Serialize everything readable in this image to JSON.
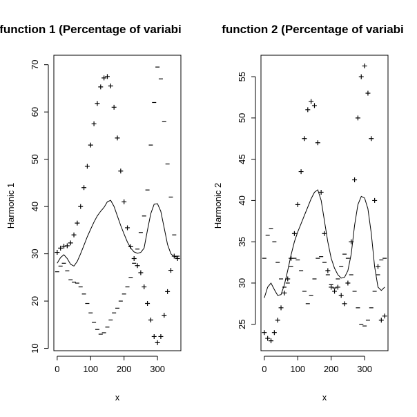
{
  "chart_data": [
    {
      "type": "line",
      "title": "function 1 (Percentage of variabi",
      "xlabel": "x",
      "ylabel": "Harmonic 1",
      "xlim": [
        -10,
        370
      ],
      "ylim": [
        9.5,
        72
      ],
      "xticks": [
        0,
        100,
        200,
        300
      ],
      "yticks": [
        10,
        20,
        30,
        40,
        50,
        60,
        70
      ],
      "grid": false,
      "mean_curve": {
        "x": [
          0,
          10,
          20,
          30,
          40,
          50,
          60,
          70,
          80,
          90,
          100,
          110,
          120,
          130,
          140,
          150,
          160,
          170,
          180,
          190,
          200,
          210,
          220,
          230,
          240,
          250,
          260,
          270,
          280,
          290,
          300,
          310,
          320,
          330,
          340,
          350,
          360
        ],
        "y": [
          28,
          29.2,
          29.8,
          29.0,
          27.8,
          27.4,
          28.4,
          30.0,
          31.8,
          33.6,
          35.2,
          36.7,
          38.0,
          39.0,
          39.8,
          41.0,
          41.3,
          40.0,
          38.0,
          36.0,
          34.2,
          32.5,
          31.2,
          30.4,
          30.1,
          30.3,
          31.2,
          35.0,
          38.5,
          40.5,
          40.6,
          39.0,
          35.5,
          32.0,
          30.0,
          29.4,
          29.3
        ]
      },
      "plus_series": {
        "x": [
          0,
          10,
          20,
          30,
          40,
          50,
          60,
          70,
          80,
          90,
          100,
          110,
          120,
          130,
          140,
          150,
          160,
          170,
          180,
          190,
          200,
          210,
          220,
          230,
          240,
          250,
          260,
          270,
          280,
          290,
          300,
          310,
          320,
          330,
          340,
          350,
          360
        ],
        "y": [
          30.3,
          31.2,
          31.6,
          31.7,
          32.3,
          34.0,
          36.5,
          40.0,
          44.0,
          48.5,
          53.0,
          57.5,
          61.8,
          65.3,
          67.2,
          67.5,
          65.5,
          61.0,
          54.5,
          47.5,
          41.0,
          35.5,
          31.5,
          29.0,
          27.5,
          26.0,
          23.0,
          19.5,
          16.0,
          12.5,
          11.2,
          12.5,
          17.0,
          22.0,
          26.5,
          29.5,
          29.0
        ]
      },
      "minus_series": {
        "x": [
          0,
          10,
          20,
          30,
          40,
          50,
          60,
          70,
          80,
          90,
          100,
          110,
          120,
          130,
          140,
          150,
          160,
          170,
          180,
          190,
          200,
          210,
          220,
          230,
          240,
          250,
          260,
          270,
          280,
          290,
          300,
          310,
          320,
          330,
          340,
          350,
          360
        ],
        "y": [
          26.2,
          27.4,
          28.0,
          26.4,
          24.5,
          24.0,
          23.8,
          23.0,
          21.5,
          19.5,
          17.5,
          15.5,
          14.0,
          13.0,
          13.3,
          14.5,
          16.0,
          17.5,
          18.5,
          20.0,
          21.5,
          23.0,
          25.0,
          28.0,
          31.0,
          34.5,
          38.0,
          43.5,
          53.0,
          62.0,
          69.5,
          67.0,
          58.0,
          49.0,
          42.0,
          34.0,
          29.5
        ]
      }
    },
    {
      "type": "line",
      "title": "function 2 (Percentage of variabi",
      "xlabel": "x",
      "ylabel": "Harmonic 2",
      "xlim": [
        -10,
        370
      ],
      "ylim": [
        21.8,
        57.6
      ],
      "xticks": [
        0,
        100,
        200,
        300
      ],
      "yticks": [
        25,
        30,
        35,
        40,
        45,
        50,
        55
      ],
      "grid": false,
      "mean_curve": {
        "x": [
          0,
          10,
          20,
          30,
          40,
          50,
          60,
          70,
          80,
          90,
          100,
          110,
          120,
          130,
          140,
          150,
          160,
          170,
          180,
          190,
          200,
          210,
          220,
          230,
          240,
          250,
          260,
          270,
          280,
          290,
          300,
          310,
          320,
          330,
          340,
          350,
          360
        ],
        "y": [
          28.2,
          29.5,
          30.0,
          29.2,
          28.5,
          28.6,
          29.8,
          31.5,
          33.4,
          35.0,
          36.2,
          37.2,
          38.2,
          39.2,
          40.2,
          41.0,
          41.3,
          40.0,
          37.5,
          35.0,
          33.0,
          31.8,
          31.0,
          30.6,
          30.7,
          31.5,
          33.5,
          37.0,
          39.5,
          40.5,
          40.3,
          39.0,
          36.0,
          32.0,
          29.5,
          29.1,
          29.5
        ]
      },
      "plus_series": {
        "x": [
          0,
          10,
          20,
          30,
          40,
          50,
          60,
          70,
          80,
          90,
          100,
          110,
          120,
          130,
          140,
          150,
          160,
          170,
          180,
          190,
          200,
          210,
          220,
          230,
          240,
          250,
          260,
          270,
          280,
          290,
          300,
          310,
          320,
          330,
          340,
          350,
          360
        ],
        "y": [
          24.0,
          23.3,
          23.0,
          24.0,
          25.5,
          27.0,
          28.8,
          30.5,
          33.0,
          36.0,
          39.5,
          43.5,
          47.5,
          51.0,
          52.0,
          51.5,
          47.0,
          41.0,
          36.0,
          31.5,
          29.5,
          29.0,
          29.5,
          28.5,
          27.5,
          30.0,
          35.0,
          42.5,
          50.0,
          55.0,
          56.3,
          53.0,
          47.5,
          40.0,
          32.0,
          25.5,
          26.0
        ]
      },
      "minus_series": {
        "x": [
          0,
          10,
          20,
          30,
          40,
          50,
          60,
          70,
          80,
          90,
          100,
          110,
          120,
          130,
          140,
          150,
          160,
          170,
          180,
          190,
          200,
          210,
          220,
          230,
          240,
          250,
          260,
          270,
          280,
          290,
          300,
          310,
          320,
          330,
          340,
          350,
          360
        ],
        "y": [
          33.0,
          35.8,
          36.6,
          35.0,
          32.5,
          30.5,
          29.5,
          30.0,
          32.0,
          33.0,
          32.8,
          31.5,
          29.0,
          27.5,
          28.5,
          30.5,
          33.0,
          33.2,
          32.5,
          31.0,
          29.8,
          29.4,
          30.5,
          32.0,
          33.5,
          33.0,
          31.0,
          29.0,
          27.0,
          25.0,
          24.8,
          25.5,
          27.0,
          29.0,
          31.0,
          32.8,
          33.0
        ]
      }
    }
  ]
}
